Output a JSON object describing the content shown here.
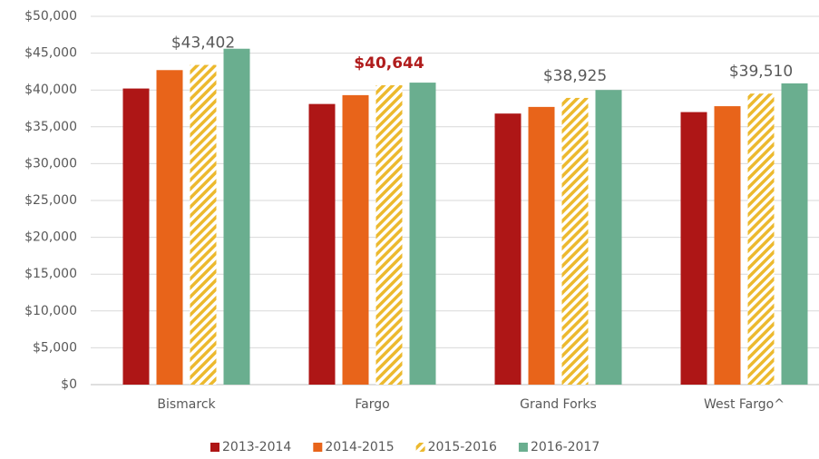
{
  "chart_data": {
    "type": "bar",
    "categories": [
      "Bismarck",
      "Fargo",
      "Grand Forks",
      "West Fargo^"
    ],
    "series": [
      {
        "name": "2013-2014",
        "color": "#ae1616",
        "values": [
          40200,
          38100,
          36800,
          37000
        ]
      },
      {
        "name": "2014-2015",
        "color": "#e8641a",
        "values": [
          42700,
          39300,
          37700,
          37800
        ]
      },
      {
        "name": "2015-2016",
        "color": "#ecb92e",
        "pattern": "diagonal-hatch",
        "values": [
          43402,
          40644,
          38925,
          39510
        ],
        "value_labels": [
          "$43,402",
          "$40,644",
          "$38,925",
          "$39,510"
        ],
        "value_label_colors": [
          "#595959",
          "#b01c1c",
          "#595959",
          "#595959"
        ]
      },
      {
        "name": "2016-2017",
        "color": "#6aae8f",
        "values": [
          45600,
          41000,
          40000,
          40900
        ]
      }
    ],
    "ylim": [
      0,
      50000
    ],
    "yticks": [
      {
        "value": 0,
        "label": "$0"
      },
      {
        "value": 5000,
        "label": "$5,000"
      },
      {
        "value": 10000,
        "label": "$10,000"
      },
      {
        "value": 15000,
        "label": "$15,000"
      },
      {
        "value": 20000,
        "label": "$20,000"
      },
      {
        "value": 25000,
        "label": "$25,000"
      },
      {
        "value": 30000,
        "label": "$30,000"
      },
      {
        "value": 35000,
        "label": "$35,000"
      },
      {
        "value": 40000,
        "label": "$40,000"
      },
      {
        "value": 45000,
        "label": "$45,000"
      },
      {
        "value": 50000,
        "label": "$50,000"
      }
    ],
    "grid": true,
    "legend": "bottom"
  }
}
